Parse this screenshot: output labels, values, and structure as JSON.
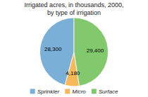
{
  "chart_data": {
    "type": "pie",
    "title": "Irrigated acres, in thousands, 2000,\nby type of irrigation",
    "categories": [
      "Sprinkler",
      "Micro",
      "Surface"
    ],
    "values": [
      28300,
      4180,
      29400
    ],
    "value_labels": [
      "28,300",
      "4,180",
      "29,400"
    ],
    "colors": [
      "#7ab0d8",
      "#f5b95a",
      "#82c96e"
    ],
    "data_labels": true,
    "legend": "bottom"
  }
}
